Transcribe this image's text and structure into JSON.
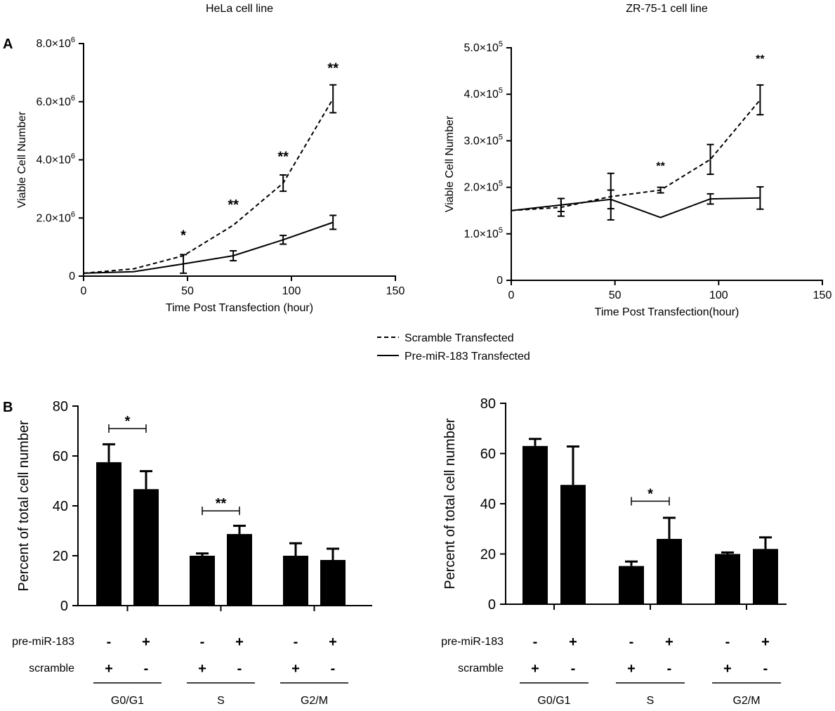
{
  "colors": {
    "ink": "#000000",
    "background": "#ffffff"
  },
  "panel_labels": {
    "a": "A",
    "b": "B"
  },
  "legend": {
    "scramble": "Scramble Transfected",
    "pre_mir": "Pre-miR-183 Transfected"
  },
  "row_labels": {
    "pre_mir": "pre-miR-183",
    "scramble": "scramble"
  },
  "chart_data": [
    {
      "id": "hela_growth",
      "type": "line",
      "title": "HeLa cell line",
      "xlabel": "Time Post Transfection (hour)",
      "ylabel": "Viable Cell Number",
      "xlim": [
        0,
        150
      ],
      "ylim": [
        0,
        8000000
      ],
      "xticks": [
        "0",
        "50",
        "100",
        "150"
      ],
      "yticks": [
        {
          "v": 0,
          "m": "0",
          "e": ""
        },
        {
          "v": 2000000,
          "m": "2.0×10",
          "e": "6"
        },
        {
          "v": 4000000,
          "m": "4.0×10",
          "e": "6"
        },
        {
          "v": 6000000,
          "m": "6.0×10",
          "e": "6"
        },
        {
          "v": 8000000,
          "m": "8.0×10",
          "e": "6"
        }
      ],
      "x": [
        0,
        24,
        48,
        72,
        96,
        120
      ],
      "series": [
        {
          "name": "Scramble Transfected",
          "dash": true,
          "values": [
            100000,
            250000,
            700000,
            1750000,
            3200000,
            6100000
          ],
          "errors": [
            0,
            0,
            0,
            0,
            280000,
            480000
          ]
        },
        {
          "name": "Pre-miR-183 Transfected",
          "dash": false,
          "values": [
            100000,
            150000,
            420000,
            700000,
            1250000,
            1850000
          ],
          "errors": [
            0,
            0,
            320000,
            170000,
            150000,
            240000
          ]
        }
      ],
      "annotations": [
        {
          "x": 48,
          "y": 1250000,
          "text": "*"
        },
        {
          "x": 72,
          "y": 2300000,
          "text": "**"
        },
        {
          "x": 96,
          "y": 3950000,
          "text": "**"
        },
        {
          "x": 120,
          "y": 7000000,
          "text": "**"
        }
      ]
    },
    {
      "id": "zr751_growth",
      "type": "line",
      "title": "ZR-75-1 cell line",
      "xlabel": "Time Post Transfection(hour)",
      "ylabel": "Viable Cell Number",
      "xlim": [
        0,
        150
      ],
      "ylim": [
        0,
        500000
      ],
      "xticks": [
        "0",
        "50",
        "100",
        "150"
      ],
      "yticks": [
        {
          "v": 0,
          "m": "0",
          "e": ""
        },
        {
          "v": 100000,
          "m": "1.0×10",
          "e": "5"
        },
        {
          "v": 200000,
          "m": "2.0×10",
          "e": "5"
        },
        {
          "v": 300000,
          "m": "3.0×10",
          "e": "5"
        },
        {
          "v": 400000,
          "m": "4.0×10",
          "e": "5"
        },
        {
          "v": 500000,
          "m": "5.0×10",
          "e": "5"
        }
      ],
      "x": [
        0,
        24,
        48,
        72,
        96,
        120
      ],
      "series": [
        {
          "name": "Scramble Transfected",
          "dash": true,
          "values": [
            150000,
            157000,
            180000,
            194000,
            260000,
            388000
          ],
          "errors": [
            0,
            19000,
            50000,
            6000,
            32000,
            32000
          ]
        },
        {
          "name": "Pre-miR-183 Transfected",
          "dash": false,
          "values": [
            150000,
            162000,
            174000,
            135000,
            175000,
            177000
          ],
          "errors": [
            0,
            14000,
            20000,
            0,
            11000,
            24000
          ]
        }
      ],
      "annotations": [
        {
          "x": 72,
          "y": 238000,
          "text": "**"
        },
        {
          "x": 120,
          "y": 468000,
          "text": "**"
        }
      ]
    },
    {
      "id": "hela_cycle",
      "type": "bar",
      "ylabel": "Percent of total cell number",
      "ylim": [
        0,
        80
      ],
      "yticks": [
        "0",
        "20",
        "40",
        "60",
        "80"
      ],
      "groups": [
        "G0/G1",
        "S",
        "G2/M"
      ],
      "values": [
        57.5,
        46.7,
        20.0,
        28.7,
        20.0,
        18.3
      ],
      "errors": [
        7.2,
        7.2,
        0.9,
        3.3,
        5.0,
        4.5
      ],
      "pre_mir_signs": [
        "-",
        "+",
        "-",
        "+",
        "-",
        "+"
      ],
      "scramble_signs": [
        "+",
        "-",
        "+",
        "-",
        "+",
        "-"
      ],
      "significance": [
        {
          "bars": [
            0,
            1
          ],
          "y": 71,
          "text": "*"
        },
        {
          "bars": [
            2,
            3
          ],
          "y": 38,
          "text": "**"
        }
      ]
    },
    {
      "id": "zr751_cycle",
      "type": "bar",
      "ylabel": "Percent of total cell number",
      "ylim": [
        0,
        80
      ],
      "yticks": [
        "0",
        "20",
        "40",
        "60",
        "80"
      ],
      "groups": [
        "G0/G1",
        "S",
        "G2/M"
      ],
      "values": [
        63.0,
        47.5,
        15.2,
        26.0,
        20.0,
        22.0
      ],
      "errors": [
        2.8,
        15.3,
        1.8,
        8.4,
        0.6,
        4.6
      ],
      "pre_mir_signs": [
        "-",
        "+",
        "-",
        "+",
        "-",
        "+"
      ],
      "scramble_signs": [
        "+",
        "-",
        "+",
        "-",
        "+",
        "-"
      ],
      "significance": [
        {
          "bars": [
            2,
            3
          ],
          "y": 41,
          "text": "*"
        }
      ]
    }
  ]
}
